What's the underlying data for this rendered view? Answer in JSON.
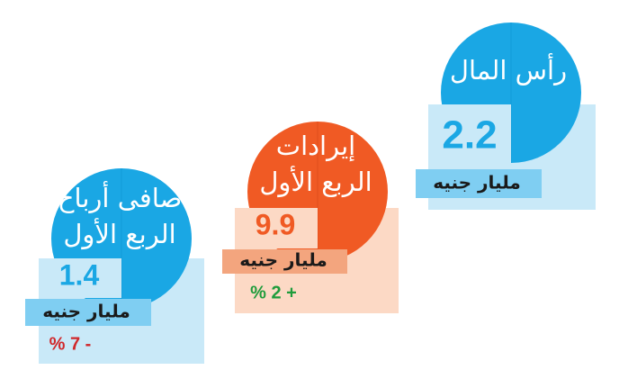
{
  "cards": [
    {
      "title": [
        "رأس المال"
      ],
      "value": "2.2",
      "unit": "مليار جنيه"
    },
    {
      "title": [
        "إيرادات",
        "الربع الأول"
      ],
      "value": "9.9",
      "unit": "مليار جنيه",
      "change": "% 2 +"
    },
    {
      "title": [
        "صافى أرباح",
        "الربع الأول"
      ],
      "value": "1.4",
      "unit": "مليار جنيه",
      "change": "% 7 -"
    }
  ]
}
